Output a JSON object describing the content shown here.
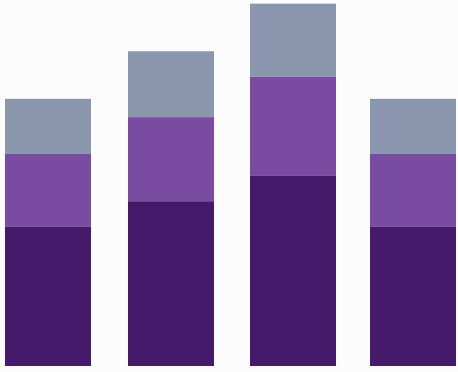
{
  "chart_data": {
    "type": "bar",
    "stacked": true,
    "orientation": "vertical",
    "categories_count": 4,
    "axes_visible": false,
    "grid": false,
    "legend": "none",
    "ylim": [
      0,
      100
    ],
    "series": [
      {
        "color": "#461a6a",
        "values": [
          38,
          45,
          52,
          38
        ]
      },
      {
        "color": "#7a4ca1",
        "values": [
          20,
          23,
          27,
          20
        ]
      },
      {
        "color": "#8a96ae",
        "values": [
          15,
          18,
          20,
          15
        ]
      }
    ]
  }
}
